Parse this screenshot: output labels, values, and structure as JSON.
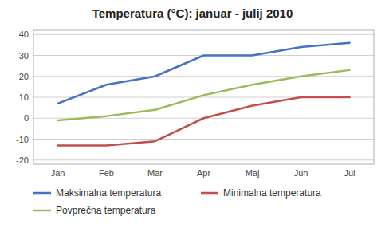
{
  "chart_data": {
    "type": "line",
    "title": "Temperatura (°C): januar - julij 2010",
    "categories": [
      "Jan",
      "Feb",
      "Mar",
      "Apr",
      "Maj",
      "Jun",
      "Jul"
    ],
    "series": [
      {
        "name": "Maksimalna temperatura",
        "color": "#4472C4",
        "values": [
          7,
          16,
          20,
          30,
          30,
          34,
          36
        ]
      },
      {
        "name": "Minimalna temperatura",
        "color": "#C0504D",
        "values": [
          -13,
          -13,
          -11,
          0,
          6,
          10,
          10
        ]
      },
      {
        "name": "Povprečna temperatura",
        "color": "#9BBB59",
        "values": [
          -1,
          1,
          4,
          11,
          16,
          20,
          23
        ]
      }
    ],
    "ylim": [
      -22,
      42
    ],
    "yticks": [
      -20,
      -10,
      0,
      10,
      20,
      30,
      40
    ],
    "grid": true,
    "legend": "bottom"
  }
}
